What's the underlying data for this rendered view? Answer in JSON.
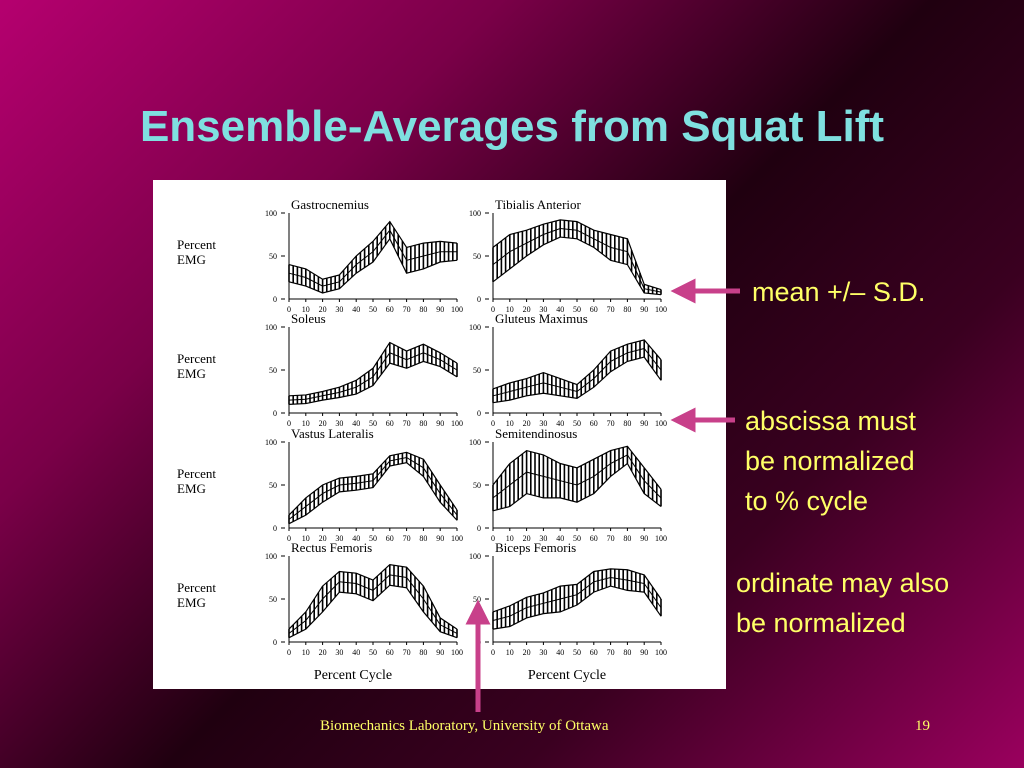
{
  "slide": {
    "title": "Ensemble-Averages from Squat Lift",
    "annotations": {
      "mean_sd": "mean +/– S.D.",
      "abscissa": [
        "abscissa must",
        "be normalized",
        "to % cycle"
      ],
      "ordinate": [
        "ordinate may also",
        "be normalized"
      ]
    },
    "footer": "Biomechanics Laboratory, University of Ottawa",
    "page_number": "19",
    "colors": {
      "title": "#7fe0e0",
      "notes": "#ffff66",
      "arrows": "#c8408a"
    }
  },
  "chart_data": {
    "type": "line",
    "grid": "2 columns x 4 rows of small plots",
    "ylabel": [
      "Percent",
      "EMG"
    ],
    "xlabel": "Percent Cycle",
    "x_ticks": [
      "0",
      "10",
      "20",
      "30",
      "40",
      "50",
      "60",
      "70",
      "80",
      "90",
      "100"
    ],
    "y_ticks": [
      "0",
      "50",
      "100"
    ],
    "ylim": [
      0,
      100
    ],
    "xlim": [
      0,
      100
    ],
    "panels": [
      {
        "name": "Gastrocnemius",
        "x": [
          0,
          10,
          20,
          30,
          40,
          50,
          60,
          70,
          80,
          90,
          100
        ],
        "mean": [
          30,
          25,
          15,
          20,
          40,
          55,
          80,
          45,
          50,
          55,
          55
        ],
        "sd": [
          10,
          10,
          8,
          8,
          10,
          12,
          10,
          15,
          15,
          12,
          10
        ]
      },
      {
        "name": "Tibialis Anterior",
        "x": [
          0,
          10,
          20,
          30,
          40,
          50,
          60,
          70,
          80,
          90,
          100
        ],
        "mean": [
          40,
          55,
          65,
          75,
          82,
          80,
          70,
          60,
          55,
          12,
          8
        ],
        "sd": [
          20,
          20,
          15,
          12,
          10,
          10,
          10,
          15,
          15,
          5,
          3
        ]
      },
      {
        "name": "Soleus",
        "x": [
          0,
          10,
          20,
          30,
          40,
          50,
          60,
          70,
          80,
          90,
          100
        ],
        "mean": [
          15,
          16,
          20,
          24,
          30,
          42,
          70,
          62,
          70,
          62,
          50
        ],
        "sd": [
          5,
          5,
          5,
          6,
          8,
          10,
          12,
          10,
          10,
          8,
          8
        ]
      },
      {
        "name": "Gluteus Maximus",
        "x": [
          0,
          10,
          20,
          30,
          40,
          50,
          60,
          70,
          80,
          90,
          100
        ],
        "mean": [
          20,
          25,
          30,
          35,
          30,
          25,
          40,
          60,
          70,
          75,
          50
        ],
        "sd": [
          8,
          10,
          10,
          12,
          10,
          8,
          10,
          12,
          10,
          10,
          12
        ]
      },
      {
        "name": "Vastus Lateralis",
        "x": [
          0,
          10,
          20,
          30,
          40,
          50,
          60,
          70,
          80,
          90,
          100
        ],
        "mean": [
          10,
          25,
          40,
          50,
          52,
          55,
          78,
          82,
          70,
          40,
          15
        ],
        "sd": [
          5,
          10,
          10,
          8,
          8,
          8,
          6,
          6,
          10,
          10,
          6
        ]
      },
      {
        "name": "Semitendinosus",
        "x": [
          0,
          10,
          20,
          30,
          40,
          50,
          60,
          70,
          80,
          90,
          100
        ],
        "mean": [
          35,
          50,
          65,
          60,
          55,
          50,
          60,
          75,
          85,
          55,
          35
        ],
        "sd": [
          15,
          25,
          25,
          25,
          20,
          20,
          20,
          15,
          10,
          15,
          10
        ]
      },
      {
        "name": "Rectus Femoris",
        "x": [
          0,
          10,
          20,
          30,
          40,
          50,
          60,
          70,
          80,
          90,
          100
        ],
        "mean": [
          10,
          25,
          50,
          70,
          68,
          60,
          78,
          75,
          50,
          20,
          10
        ],
        "sd": [
          5,
          10,
          15,
          12,
          12,
          12,
          12,
          12,
          15,
          8,
          5
        ]
      },
      {
        "name": "Biceps Femoris",
        "x": [
          0,
          10,
          20,
          30,
          40,
          50,
          60,
          70,
          80,
          90,
          100
        ],
        "mean": [
          25,
          30,
          40,
          45,
          50,
          55,
          70,
          75,
          72,
          68,
          40
        ],
        "sd": [
          10,
          12,
          12,
          12,
          15,
          12,
          12,
          10,
          12,
          10,
          10
        ]
      }
    ]
  }
}
